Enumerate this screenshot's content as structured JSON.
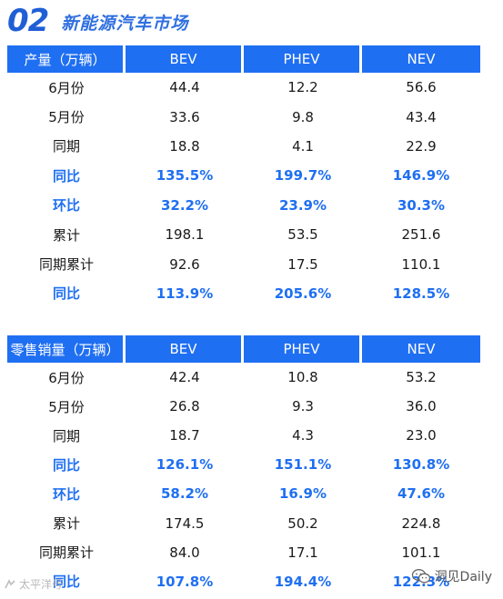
{
  "header": {
    "number": "02",
    "title": "新能源汽车市场"
  },
  "production": {
    "columns": [
      "产量（万辆）",
      "BEV",
      "PHEV",
      "NEV"
    ],
    "rows": [
      {
        "label": "6月份",
        "bev": "44.4",
        "phev": "12.2",
        "nev": "56.6",
        "highlight": false
      },
      {
        "label": "5月份",
        "bev": "33.6",
        "phev": "9.8",
        "nev": "43.4",
        "highlight": false
      },
      {
        "label": "同期",
        "bev": "18.8",
        "phev": "4.1",
        "nev": "22.9",
        "highlight": false
      },
      {
        "label": "同比",
        "bev": "135.5%",
        "phev": "199.7%",
        "nev": "146.9%",
        "highlight": true
      },
      {
        "label": "环比",
        "bev": "32.2%",
        "phev": "23.9%",
        "nev": "30.3%",
        "highlight": true
      },
      {
        "label": "累计",
        "bev": "198.1",
        "phev": "53.5",
        "nev": "251.6",
        "highlight": false
      },
      {
        "label": "同期累计",
        "bev": "92.6",
        "phev": "17.5",
        "nev": "110.1",
        "highlight": false
      },
      {
        "label": "同比",
        "bev": "113.9%",
        "phev": "205.6%",
        "nev": "128.5%",
        "highlight": true
      }
    ]
  },
  "retail": {
    "columns": [
      "零售销量（万辆）",
      "BEV",
      "PHEV",
      "NEV"
    ],
    "rows": [
      {
        "label": "6月份",
        "bev": "42.4",
        "phev": "10.8",
        "nev": "53.2",
        "highlight": false
      },
      {
        "label": "5月份",
        "bev": "26.8",
        "phev": "9.3",
        "nev": "36.0",
        "highlight": false
      },
      {
        "label": "同期",
        "bev": "18.7",
        "phev": "4.3",
        "nev": "23.0",
        "highlight": false
      },
      {
        "label": "同比",
        "bev": "126.1%",
        "phev": "151.1%",
        "nev": "130.8%",
        "highlight": true
      },
      {
        "label": "环比",
        "bev": "58.2%",
        "phev": "16.9%",
        "nev": "47.6%",
        "highlight": true
      },
      {
        "label": "累计",
        "bev": "174.5",
        "phev": "50.2",
        "nev": "224.8",
        "highlight": false
      },
      {
        "label": "同期累计",
        "bev": "84.0",
        "phev": "17.1",
        "nev": "101.1",
        "highlight": false
      },
      {
        "label": "同比",
        "bev": "107.8%",
        "phev": "194.4%",
        "nev": "122.3%",
        "highlight": true
      }
    ]
  },
  "watermarks": {
    "left_text": "太平洋号",
    "right_text": "洞见Daily",
    "left_icon": "logo-mark-icon",
    "right_icon": "wechat-icon"
  },
  "colors": {
    "accent": "#1f6ff2",
    "title": "#1f5fd6",
    "highlight_text": "#1f6ff2"
  }
}
